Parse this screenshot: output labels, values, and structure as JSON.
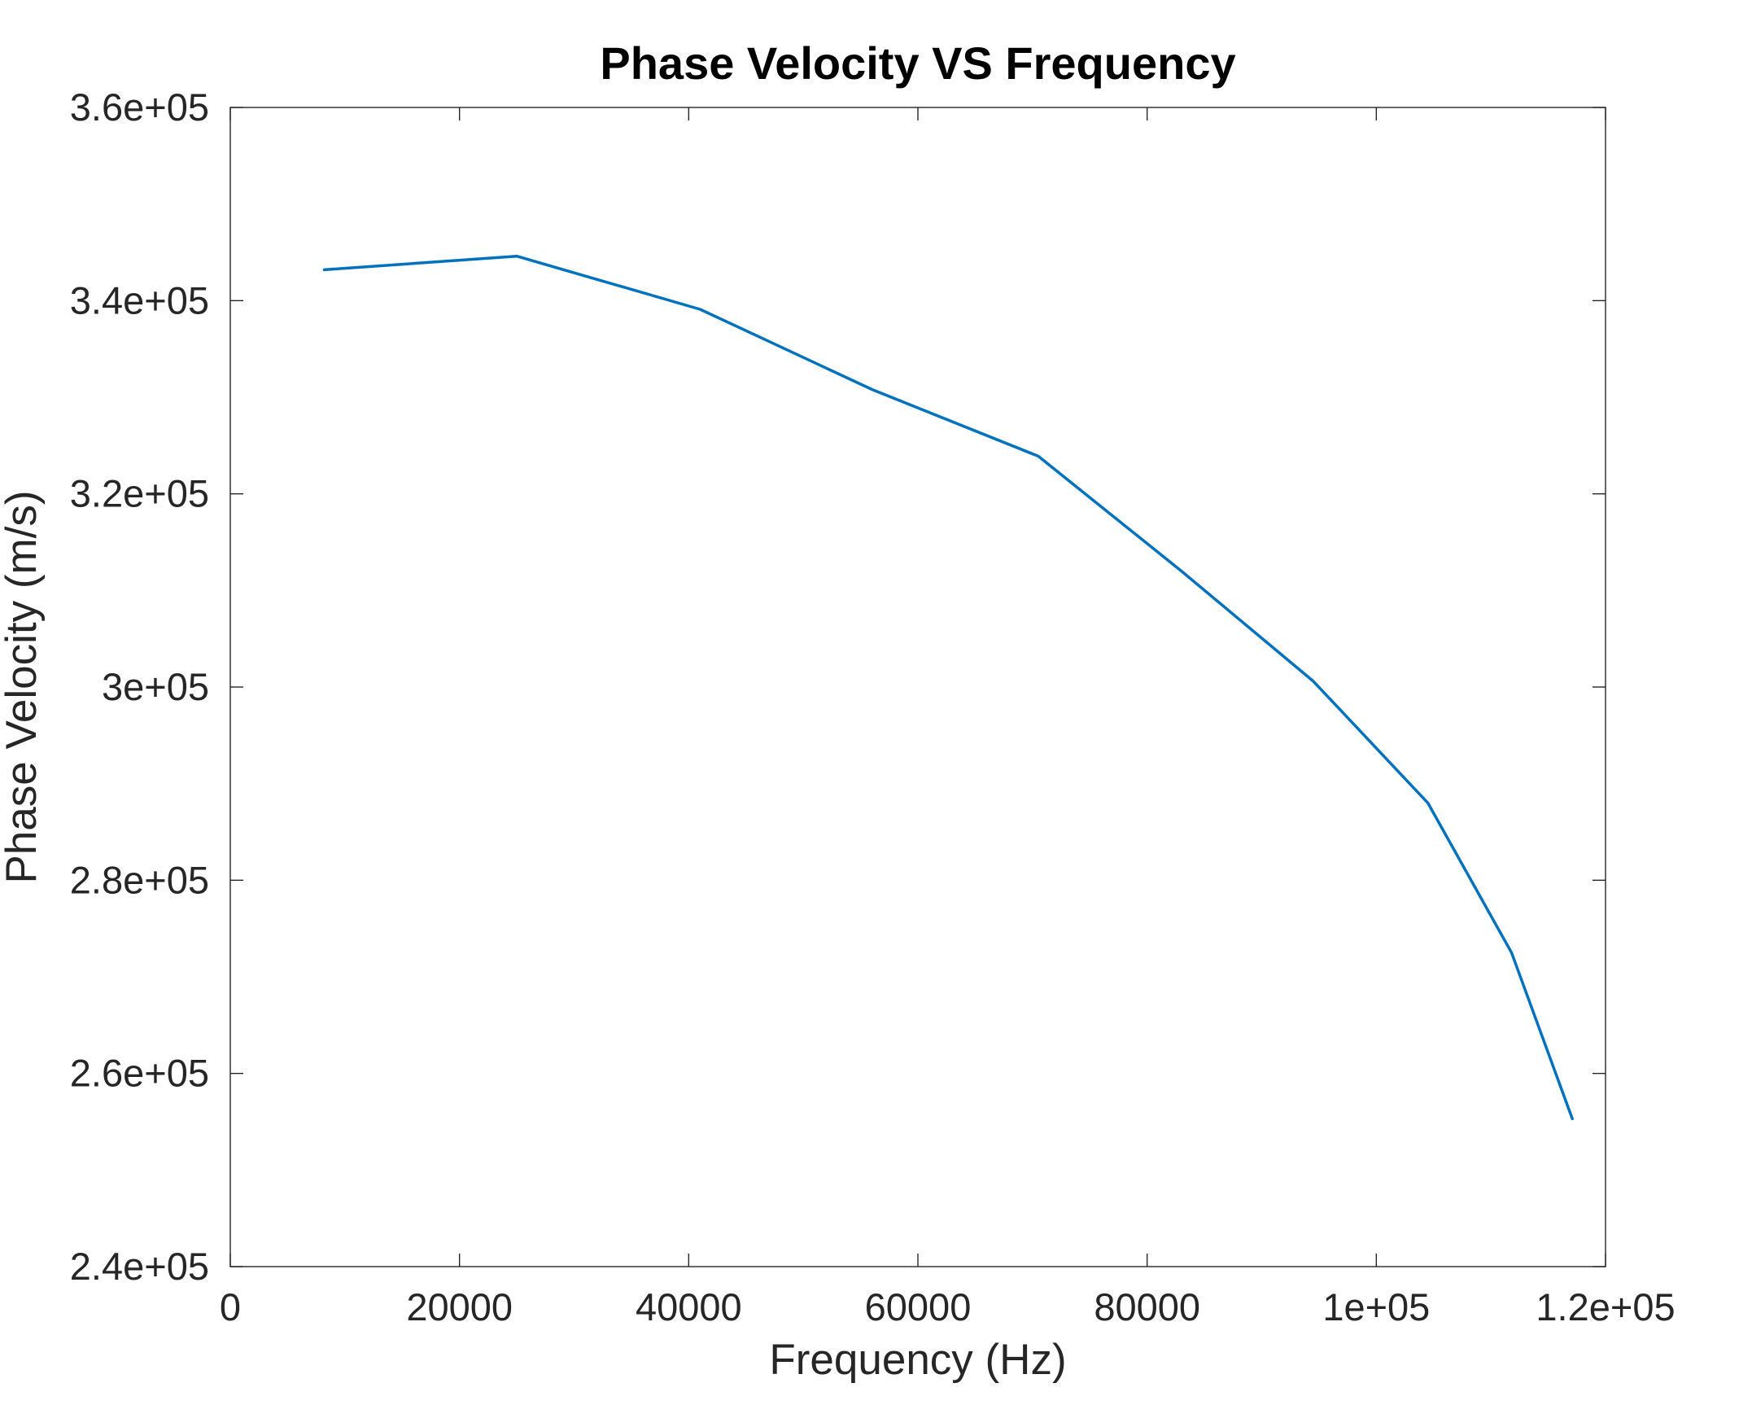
{
  "chart_data": {
    "type": "line",
    "title": "Phase Velocity VS Frequency",
    "xlabel": "Frequency (Hz)",
    "ylabel": "Phase Velocity (m/s)",
    "xlim": [
      0,
      120000
    ],
    "ylim": [
      240000,
      360000
    ],
    "xticks": [
      0,
      20000,
      40000,
      60000,
      80000,
      100000,
      120000
    ],
    "xtick_labels": [
      "0",
      "20000",
      "40000",
      "60000",
      "80000",
      "1e+05",
      "1.2e+05"
    ],
    "yticks": [
      240000,
      260000,
      280000,
      300000,
      320000,
      340000,
      360000
    ],
    "ytick_labels": [
      "2.4e+05",
      "2.6e+05",
      "2.8e+05",
      "3e+05",
      "3.2e+05",
      "3.4e+05",
      "3.6e+05"
    ],
    "grid": false,
    "legend": "none",
    "series": [
      {
        "color": "#0072BD",
        "x": [
          8200,
          25000,
          41000,
          56000,
          70500,
          83000,
          94500,
          104500,
          111800,
          117100
        ],
        "y": [
          343200,
          344600,
          339100,
          330800,
          323900,
          312000,
          300600,
          288000,
          272500,
          255300
        ]
      }
    ]
  }
}
